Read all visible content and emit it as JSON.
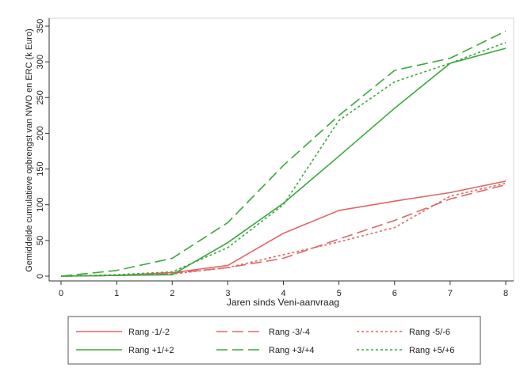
{
  "chart_data": {
    "type": "line",
    "title": "",
    "xlabel": "Jaren sinds Veni-aanvraag",
    "ylabel": "Gemiddelde cumulatieve opbrengst van NWO en ERC (k Euro)",
    "x": [
      0,
      1,
      2,
      3,
      4,
      5,
      6,
      7,
      8
    ],
    "xlim": [
      0,
      8
    ],
    "ylim": [
      0,
      350
    ],
    "xticks": [
      "0",
      "1",
      "2",
      "3",
      "4",
      "5",
      "6",
      "7",
      "8"
    ],
    "yticks": [
      "0",
      "50",
      "100",
      "150",
      "200",
      "250",
      "300",
      "350"
    ],
    "grid": false,
    "legend_position": "bottom",
    "series": [
      {
        "name": "Rang -1/-2",
        "color": "#e06666",
        "dash": "solid",
        "values": [
          0,
          1,
          5,
          15,
          60,
          92,
          105,
          117,
          133
        ]
      },
      {
        "name": "Rang -3/-4",
        "color": "#e06666",
        "dash": "dashed",
        "values": [
          0,
          1,
          4,
          12,
          25,
          52,
          78,
          108,
          128
        ]
      },
      {
        "name": "Rang -5/-6",
        "color": "#e06666",
        "dash": "dotted",
        "values": [
          0,
          1,
          3,
          12,
          30,
          48,
          68,
          112,
          130
        ]
      },
      {
        "name": "Rang +1/+2",
        "color": "#3aa83a",
        "dash": "solid",
        "values": [
          0,
          1,
          2,
          47,
          102,
          168,
          235,
          298,
          319
        ]
      },
      {
        "name": "Rang +3/+4",
        "color": "#3aa83a",
        "dash": "dashed",
        "values": [
          0,
          8,
          25,
          75,
          155,
          225,
          288,
          305,
          343
        ]
      },
      {
        "name": "Rang +5/+6",
        "color": "#3aa83a",
        "dash": "dotted",
        "values": [
          0,
          2,
          6,
          40,
          100,
          218,
          272,
          298,
          327
        ]
      }
    ]
  }
}
